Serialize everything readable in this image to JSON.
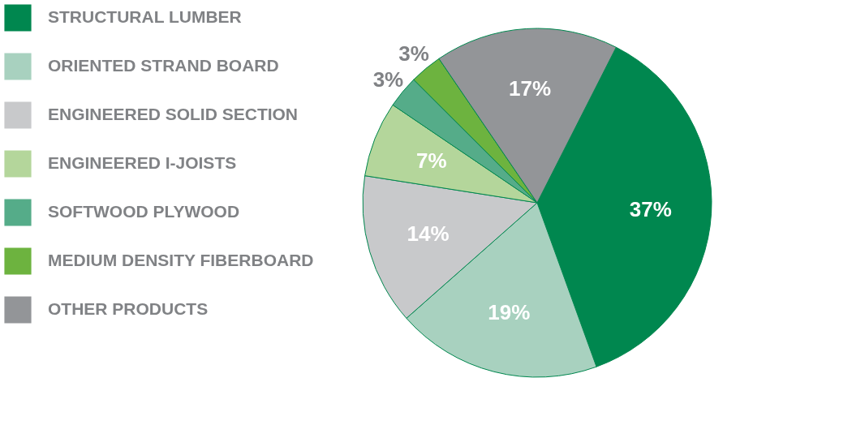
{
  "chart_data": {
    "type": "pie",
    "categories": [
      "STRUCTURAL LUMBER",
      "ORIENTED STRAND BOARD",
      "ENGINEERED SOLID SECTION",
      "ENGINEERED I-JOISTS",
      "SOFTWOOD PLYWOOD",
      "MEDIUM DENSITY FIBERBOARD",
      "OTHER PRODUCTS"
    ],
    "values": [
      37,
      19,
      14,
      7,
      3,
      3,
      17
    ],
    "colors": [
      "#00874f",
      "#a8d1bf",
      "#c8c9cb",
      "#b4d69b",
      "#55ac89",
      "#6db33f",
      "#939598"
    ],
    "value_labels": [
      "37%",
      "19%",
      "14%",
      "7%",
      "3%",
      "3%",
      "17%"
    ],
    "legend": "left"
  }
}
